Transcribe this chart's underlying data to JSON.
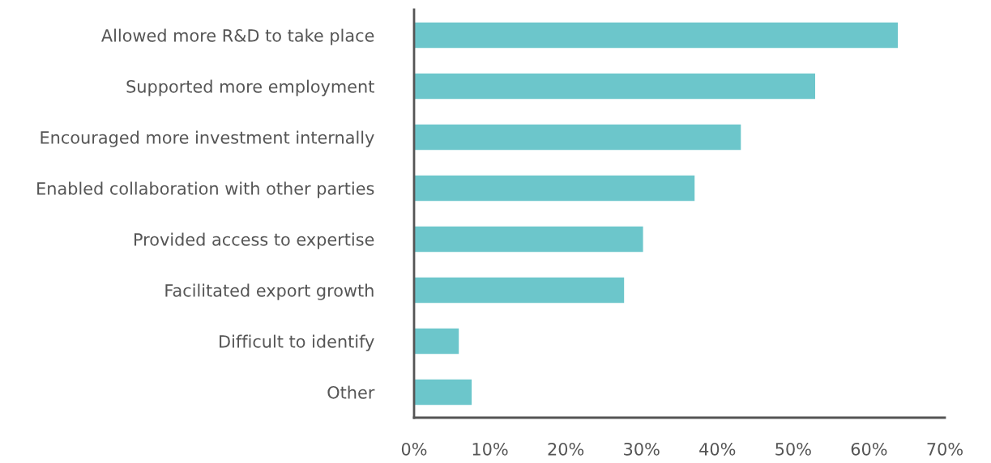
{
  "chart_data": {
    "type": "bar",
    "orientation": "horizontal",
    "categories": [
      "Allowed more R&D to take place",
      "Supported more employment",
      "Encouraged more investment internally",
      "Enabled collaboration with other parties",
      "Provided access to expertise",
      "Facilitated export growth",
      "Difficult to identify",
      "Other"
    ],
    "values": [
      63.8,
      52.9,
      43.1,
      37.0,
      30.2,
      27.7,
      5.9,
      7.6
    ],
    "color": "#6cc6cb",
    "xlim": [
      0,
      70
    ],
    "xticks": [
      {
        "value": 0,
        "label": "0%"
      },
      {
        "value": 10,
        "label": "10%"
      },
      {
        "value": 20,
        "label": "20%"
      },
      {
        "value": 30,
        "label": "30%"
      },
      {
        "value": 40,
        "label": "40%"
      },
      {
        "value": 50,
        "label": "50%"
      },
      {
        "value": 60,
        "label": "60%"
      },
      {
        "value": 70,
        "label": "70%"
      }
    ],
    "grid": false,
    "legend": false
  }
}
